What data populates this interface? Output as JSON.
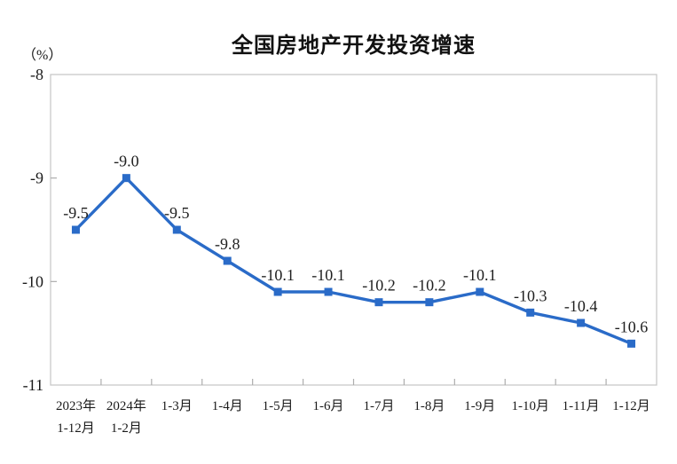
{
  "chart_data": {
    "type": "line",
    "title": "全国房地产开发投资增速",
    "unit_label": "（%）",
    "categories": [
      [
        "2023年",
        "1-12月"
      ],
      [
        "2024年",
        "1-2月"
      ],
      [
        "1-3月"
      ],
      [
        "1-4月"
      ],
      [
        "1-5月"
      ],
      [
        "1-6月"
      ],
      [
        "1-7月"
      ],
      [
        "1-8月"
      ],
      [
        "1-9月"
      ],
      [
        "1-10月"
      ],
      [
        "1-11月"
      ],
      [
        "1-12月"
      ]
    ],
    "values": [
      -9.5,
      -9.0,
      -9.5,
      -9.8,
      -10.1,
      -10.1,
      -10.2,
      -10.2,
      -10.1,
      -10.3,
      -10.4,
      -10.6
    ],
    "data_labels": [
      "-9.5",
      "-9.0",
      "-9.5",
      "-9.8",
      "-10.1",
      "-10.1",
      "-10.2",
      "-10.2",
      "-10.1",
      "-10.3",
      "-10.4",
      "-10.6"
    ],
    "ylim": [
      -11,
      -8
    ],
    "yticks": [
      -8,
      -9,
      -10,
      -11
    ],
    "grid": false,
    "legend": null,
    "line_color": "#2A6BC8",
    "marker_color": "#2A6BC8",
    "axis_color": "#C9C9C9",
    "tick_color": "#ADADAD",
    "label_color": "#1f1f1f"
  }
}
